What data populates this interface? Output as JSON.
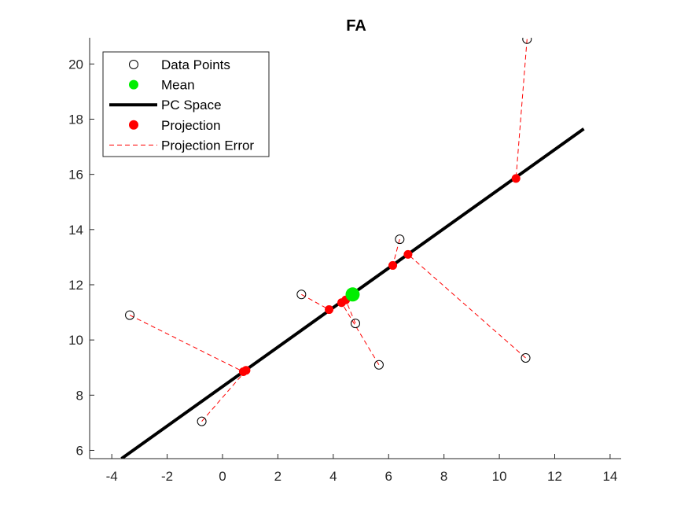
{
  "chart_data": {
    "type": "scatter",
    "title": "FA",
    "xlabel": "",
    "ylabel": "",
    "xlim": [
      -4.8,
      14.4
    ],
    "ylim": [
      5.7,
      20.95
    ],
    "xticks": [
      -4,
      -2,
      0,
      2,
      4,
      6,
      8,
      10,
      12,
      14
    ],
    "yticks": [
      6,
      8,
      10,
      12,
      14,
      16,
      18,
      20
    ],
    "grid": false,
    "legend_position": "top-left",
    "legend": [
      {
        "label": "Data Points",
        "style": "hollow-circle"
      },
      {
        "label": "Mean",
        "style": "green-dot"
      },
      {
        "label": "PC Space",
        "style": "black-line"
      },
      {
        "label": "Projection",
        "style": "red-dot"
      },
      {
        "label": "Projection Error",
        "style": "red-dashed-line"
      }
    ],
    "data_points": [
      {
        "x": 11.0,
        "y": 20.9
      },
      {
        "x": 6.4,
        "y": 13.65
      },
      {
        "x": 2.85,
        "y": 11.65
      },
      {
        "x": -3.35,
        "y": 10.9
      },
      {
        "x": 4.8,
        "y": 10.6
      },
      {
        "x": 5.65,
        "y": 9.1
      },
      {
        "x": 10.95,
        "y": 9.35
      },
      {
        "x": -0.75,
        "y": 7.05
      }
    ],
    "projections": [
      {
        "x": 10.6,
        "y": 15.85
      },
      {
        "x": 6.15,
        "y": 12.7
      },
      {
        "x": 3.85,
        "y": 11.1
      },
      {
        "x": 0.75,
        "y": 8.85
      },
      {
        "x": 4.45,
        "y": 11.45
      },
      {
        "x": 4.3,
        "y": 11.35
      },
      {
        "x": 6.7,
        "y": 13.1
      },
      {
        "x": 0.85,
        "y": 8.9
      }
    ],
    "mean": {
      "x": 4.7,
      "y": 11.65
    },
    "pc_line": {
      "x": [
        -3.65,
        13.05
      ],
      "y": [
        5.7,
        17.65
      ]
    },
    "colors": {
      "data_point": "#000000",
      "mean": "#00ee00",
      "pc_line": "#000000",
      "projection": "#ff0000",
      "error": "#ff0000",
      "axis": "#262626"
    }
  }
}
